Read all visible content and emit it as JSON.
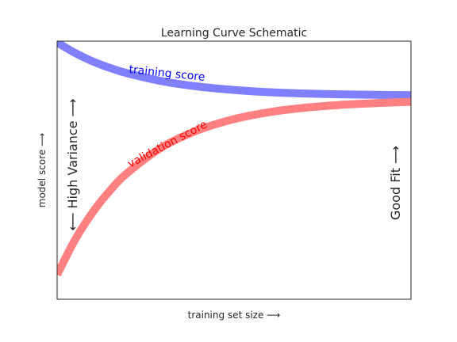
{
  "chart_data": {
    "type": "line",
    "title": "Learning Curve Schematic",
    "xlabel": "training set size  ⟶",
    "ylabel": "model score  ⟶",
    "xlim": [
      0,
      1
    ],
    "ylim": [
      0,
      1
    ],
    "grid": false,
    "series": [
      {
        "name": "training score",
        "color": "#8080ff",
        "label_color": "#0000ff",
        "x": [
          0.0,
          0.05,
          0.1,
          0.15,
          0.2,
          0.3,
          0.4,
          0.5,
          0.6,
          0.7,
          0.8,
          0.9,
          1.0
        ],
        "y": [
          0.995,
          0.955,
          0.922,
          0.896,
          0.875,
          0.844,
          0.824,
          0.811,
          0.802,
          0.797,
          0.794,
          0.792,
          0.791
        ]
      },
      {
        "name": "validation score",
        "color": "#ff8080",
        "label_color": "#ff0000",
        "x": [
          0.0,
          0.05,
          0.1,
          0.15,
          0.2,
          0.3,
          0.4,
          0.5,
          0.6,
          0.7,
          0.8,
          0.9,
          1.0
        ],
        "y": [
          0.095,
          0.229,
          0.336,
          0.422,
          0.491,
          0.592,
          0.656,
          0.698,
          0.725,
          0.742,
          0.753,
          0.76,
          0.765
        ]
      }
    ],
    "annotations": {
      "left": "⟵  High Variance  ⟶",
      "right": "Good Fit  ⟶"
    }
  }
}
